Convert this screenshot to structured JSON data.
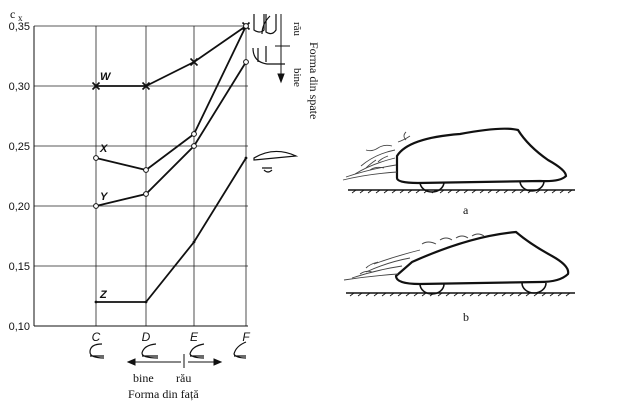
{
  "chart_data": {
    "type": "line",
    "ylabel": "c",
    "ylabel_sub": "x",
    "categories": [
      "C",
      "D",
      "E",
      "F"
    ],
    "yticks": [
      "0,10",
      "0,15",
      "0,20",
      "0,25",
      "0,30",
      "0,35"
    ],
    "ylim": [
      0.1,
      0.35
    ],
    "grid": true,
    "series": [
      {
        "name": "W",
        "values": [
          0.3,
          0.3,
          0.32,
          0.35
        ],
        "marker": "x"
      },
      {
        "name": "X",
        "values": [
          0.24,
          0.23,
          0.26,
          0.35
        ],
        "marker": "circle"
      },
      {
        "name": "Y",
        "values": [
          0.2,
          0.21,
          0.25,
          0.32
        ],
        "marker": "circle"
      },
      {
        "name": "Z",
        "values": [
          0.12,
          0.12,
          0.17,
          0.24
        ],
        "marker": "tick"
      }
    ],
    "xaxis_good": "bine",
    "xaxis_bad": "rău",
    "xlabel": "Forma din față",
    "right_good": "bine",
    "right_bad": "rău",
    "right_label": "Forma din spate"
  },
  "figures": {
    "label_a": "a",
    "label_b": "b"
  }
}
